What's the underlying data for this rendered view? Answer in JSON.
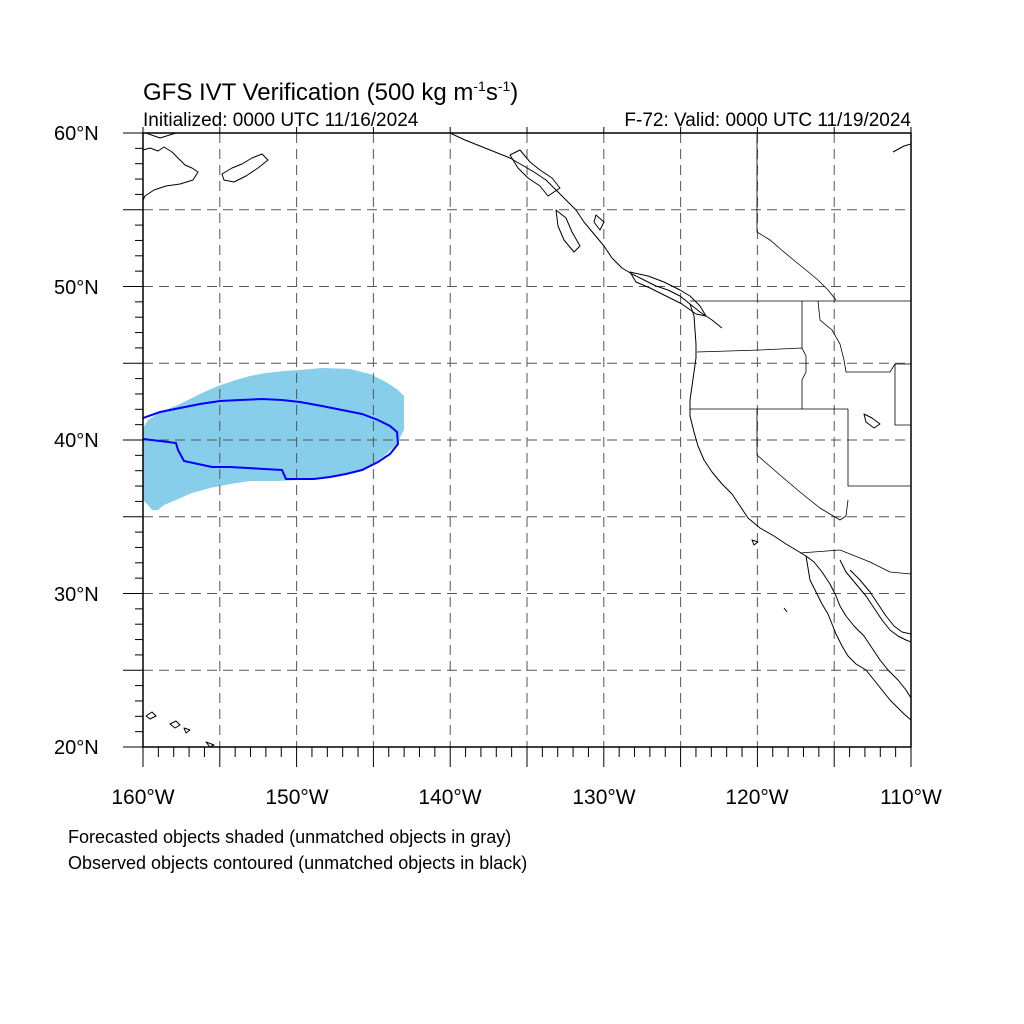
{
  "title": {
    "text": "GFS IVT Verification (500 kg m",
    "sup1": "-1",
    "mid": "s",
    "sup2": "-1",
    "end": ")"
  },
  "initialized": "Initialized: 0000 UTC 11/16/2024",
  "valid": "F-72: Valid: 0000 UTC 11/19/2024",
  "lat_labels": [
    "60°N",
    "50°N",
    "40°N",
    "30°N",
    "20°N"
  ],
  "lon_labels": [
    "160°W",
    "150°W",
    "140°W",
    "130°W",
    "120°W",
    "110°W"
  ],
  "map": {
    "lon_range": [
      -160,
      -110
    ],
    "lat_range": [
      20,
      60
    ],
    "grid": "dashed every 5°",
    "forecast_color": "#87ceeb",
    "observed_color": "#0000ff",
    "coastline_color": "#000000"
  },
  "notes": {
    "forecast": "Forecasted objects shaded (unmatched objects in gray)",
    "observed": "Observed objects contoured (unmatched objects in black)"
  }
}
